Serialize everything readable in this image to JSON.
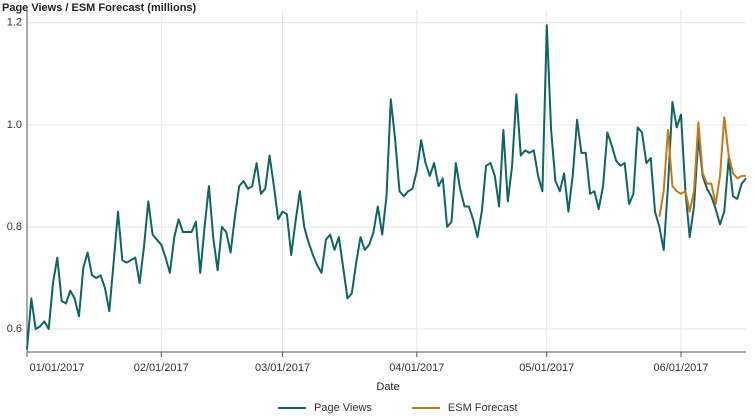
{
  "chart_data": {
    "type": "line",
    "title": "Page Views / ESM Forecast (millions)",
    "x_label": "Date",
    "x": [
      "01/01/2017",
      "01/02/2017",
      "01/03/2017",
      "01/04/2017",
      "01/05/2017",
      "01/06/2017",
      "01/07/2017",
      "01/08/2017",
      "01/09/2017",
      "01/10/2017",
      "01/11/2017",
      "01/12/2017",
      "01/13/2017",
      "01/14/2017",
      "01/15/2017",
      "01/16/2017",
      "01/17/2017",
      "01/18/2017",
      "01/19/2017",
      "01/20/2017",
      "01/21/2017",
      "01/22/2017",
      "01/23/2017",
      "01/24/2017",
      "01/25/2017",
      "01/26/2017",
      "01/27/2017",
      "01/28/2017",
      "01/29/2017",
      "01/30/2017",
      "01/31/2017",
      "02/01/2017",
      "02/02/2017",
      "02/03/2017",
      "02/04/2017",
      "02/05/2017",
      "02/06/2017",
      "02/07/2017",
      "02/08/2017",
      "02/09/2017",
      "02/10/2017",
      "02/11/2017",
      "02/12/2017",
      "02/13/2017",
      "02/14/2017",
      "02/15/2017",
      "02/16/2017",
      "02/17/2017",
      "02/18/2017",
      "02/19/2017",
      "02/20/2017",
      "02/21/2017",
      "02/22/2017",
      "02/23/2017",
      "02/24/2017",
      "02/25/2017",
      "02/26/2017",
      "02/27/2017",
      "02/28/2017",
      "03/01/2017",
      "03/02/2017",
      "03/03/2017",
      "03/04/2017",
      "03/05/2017",
      "03/06/2017",
      "03/07/2017",
      "03/08/2017",
      "03/09/2017",
      "03/10/2017",
      "03/11/2017",
      "03/12/2017",
      "03/13/2017",
      "03/14/2017",
      "03/15/2017",
      "03/16/2017",
      "03/17/2017",
      "03/18/2017",
      "03/19/2017",
      "03/20/2017",
      "03/21/2017",
      "03/22/2017",
      "03/23/2017",
      "03/24/2017",
      "03/25/2017",
      "03/26/2017",
      "03/27/2017",
      "03/28/2017",
      "03/29/2017",
      "03/30/2017",
      "03/31/2017",
      "04/01/2017",
      "04/02/2017",
      "04/03/2017",
      "04/04/2017",
      "04/05/2017",
      "04/06/2017",
      "04/07/2017",
      "04/08/2017",
      "04/09/2017",
      "04/10/2017",
      "04/11/2017",
      "04/12/2017",
      "04/13/2017",
      "04/14/2017",
      "04/15/2017",
      "04/16/2017",
      "04/17/2017",
      "04/18/2017",
      "04/19/2017",
      "04/20/2017",
      "04/21/2017",
      "04/22/2017",
      "04/23/2017",
      "04/24/2017",
      "04/25/2017",
      "04/26/2017",
      "04/27/2017",
      "04/28/2017",
      "04/29/2017",
      "04/30/2017",
      "05/01/2017",
      "05/02/2017",
      "05/03/2017",
      "05/04/2017",
      "05/05/2017",
      "05/06/2017",
      "05/07/2017",
      "05/08/2017",
      "05/09/2017",
      "05/10/2017",
      "05/11/2017",
      "05/12/2017",
      "05/13/2017",
      "05/14/2017",
      "05/15/2017",
      "05/16/2017",
      "05/17/2017",
      "05/18/2017",
      "05/19/2017",
      "05/20/2017",
      "05/21/2017",
      "05/22/2017",
      "05/23/2017",
      "05/24/2017",
      "05/25/2017",
      "05/26/2017",
      "05/27/2017",
      "05/28/2017",
      "05/29/2017",
      "05/30/2017",
      "05/31/2017",
      "06/01/2017",
      "06/02/2017",
      "06/03/2017",
      "06/04/2017",
      "06/05/2017",
      "06/06/2017",
      "06/07/2017",
      "06/08/2017",
      "06/09/2017",
      "06/10/2017",
      "06/11/2017",
      "06/12/2017",
      "06/13/2017",
      "06/14/2017",
      "06/15/2017",
      "06/16/2017"
    ],
    "series": [
      {
        "name": "Page Views",
        "color": "#0f6466",
        "values": [
          0.56,
          0.66,
          0.6,
          0.605,
          0.615,
          0.6,
          0.69,
          0.74,
          0.655,
          0.65,
          0.675,
          0.66,
          0.625,
          0.72,
          0.75,
          0.705,
          0.7,
          0.705,
          0.68,
          0.635,
          0.73,
          0.83,
          0.735,
          0.73,
          0.735,
          0.74,
          0.69,
          0.76,
          0.85,
          0.785,
          0.775,
          0.765,
          0.74,
          0.71,
          0.78,
          0.815,
          0.79,
          0.79,
          0.79,
          0.81,
          0.71,
          0.8,
          0.88,
          0.78,
          0.715,
          0.8,
          0.79,
          0.75,
          0.82,
          0.88,
          0.89,
          0.875,
          0.88,
          0.925,
          0.865,
          0.875,
          0.94,
          0.88,
          0.815,
          0.83,
          0.825,
          0.745,
          0.81,
          0.87,
          0.8,
          0.77,
          0.745,
          0.725,
          0.71,
          0.775,
          0.785,
          0.755,
          0.78,
          0.72,
          0.66,
          0.67,
          0.73,
          0.78,
          0.755,
          0.765,
          0.79,
          0.84,
          0.785,
          0.86,
          1.05,
          0.97,
          0.87,
          0.86,
          0.87,
          0.875,
          0.91,
          0.97,
          0.925,
          0.9,
          0.925,
          0.88,
          0.895,
          0.8,
          0.81,
          0.925,
          0.875,
          0.84,
          0.84,
          0.815,
          0.78,
          0.83,
          0.92,
          0.925,
          0.9,
          0.84,
          0.99,
          0.85,
          0.92,
          1.06,
          0.94,
          0.95,
          0.945,
          0.95,
          0.9,
          0.87,
          1.195,
          0.99,
          0.89,
          0.87,
          0.905,
          0.83,
          0.9,
          1.01,
          0.945,
          0.945,
          0.865,
          0.87,
          0.835,
          0.88,
          0.985,
          0.96,
          0.93,
          0.92,
          0.925,
          0.845,
          0.865,
          0.995,
          0.985,
          0.925,
          0.935,
          0.83,
          0.8,
          0.755,
          0.88,
          1.045,
          0.995,
          1.02,
          0.87,
          0.78,
          0.84,
          0.975,
          0.9,
          0.875,
          0.86,
          0.835,
          0.805,
          0.83,
          0.935,
          0.86,
          0.855,
          0.885,
          0.895
        ]
      },
      {
        "name": "ESM Forecast",
        "color": "#c27a1a",
        "values": [
          null,
          null,
          null,
          null,
          null,
          null,
          null,
          null,
          null,
          null,
          null,
          null,
          null,
          null,
          null,
          null,
          null,
          null,
          null,
          null,
          null,
          null,
          null,
          null,
          null,
          null,
          null,
          null,
          null,
          null,
          null,
          null,
          null,
          null,
          null,
          null,
          null,
          null,
          null,
          null,
          null,
          null,
          null,
          null,
          null,
          null,
          null,
          null,
          null,
          null,
          null,
          null,
          null,
          null,
          null,
          null,
          null,
          null,
          null,
          null,
          null,
          null,
          null,
          null,
          null,
          null,
          null,
          null,
          null,
          null,
          null,
          null,
          null,
          null,
          null,
          null,
          null,
          null,
          null,
          null,
          null,
          null,
          null,
          null,
          null,
          null,
          null,
          null,
          null,
          null,
          null,
          null,
          null,
          null,
          null,
          null,
          null,
          null,
          null,
          null,
          null,
          null,
          null,
          null,
          null,
          null,
          null,
          null,
          null,
          null,
          null,
          null,
          null,
          null,
          null,
          null,
          null,
          null,
          null,
          null,
          null,
          null,
          null,
          null,
          null,
          null,
          null,
          null,
          null,
          null,
          null,
          null,
          null,
          null,
          null,
          null,
          null,
          null,
          null,
          null,
          null,
          null,
          null,
          null,
          null,
          null,
          0.82,
          0.87,
          0.99,
          0.88,
          0.87,
          0.865,
          0.87,
          0.83,
          0.87,
          1.005,
          0.905,
          0.885,
          0.885,
          0.845,
          0.9,
          1.015,
          0.94,
          0.905,
          0.895,
          0.9,
          0.9
        ]
      }
    ],
    "xlim": [
      "01/01/2017",
      "06/16/2017"
    ],
    "xticks": [
      "01/01/2017",
      "02/01/2017",
      "03/01/2017",
      "04/01/2017",
      "05/01/2017",
      "06/01/2017"
    ],
    "ylim": [
      0.555,
      1.225
    ],
    "yticks": [
      0.6,
      0.8,
      {
        "value": 1,
        "label": "1.0"
      },
      1.2
    ],
    "grid": true
  }
}
